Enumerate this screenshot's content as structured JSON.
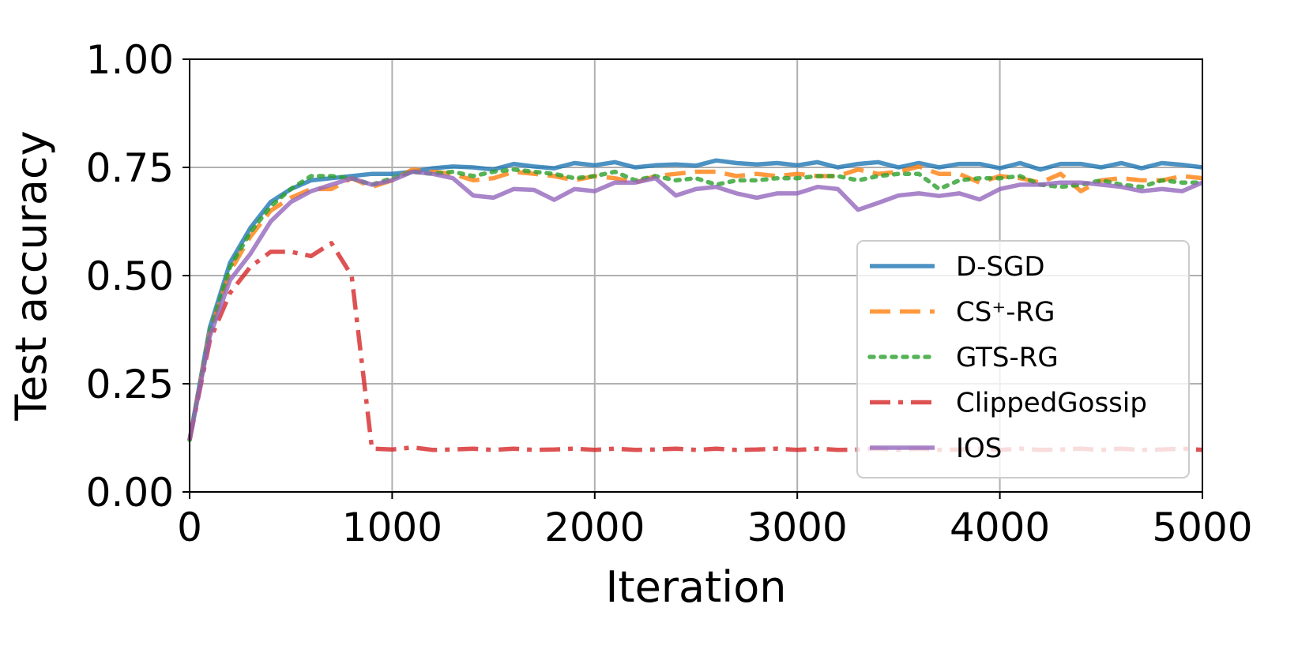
{
  "chart_data": {
    "type": "line",
    "title": "",
    "xlabel": "Iteration",
    "ylabel": "Test accuracy",
    "xlim": [
      0,
      5000
    ],
    "ylim": [
      0.0,
      1.0
    ],
    "xticks": [
      "0",
      "1000",
      "2000",
      "3000",
      "4000",
      "5000"
    ],
    "yticks": [
      "0.00",
      "0.25",
      "0.50",
      "0.75",
      "1.00"
    ],
    "grid": true,
    "legend_position": "center-right",
    "x": [
      0,
      100,
      200,
      300,
      400,
      500,
      600,
      700,
      800,
      900,
      1000,
      1100,
      1200,
      1300,
      1400,
      1500,
      1600,
      1700,
      1800,
      1900,
      2000,
      2100,
      2200,
      2300,
      2400,
      2500,
      2600,
      2700,
      2800,
      2900,
      3000,
      3100,
      3200,
      3300,
      3400,
      3500,
      3600,
      3700,
      3800,
      3900,
      4000,
      4100,
      4200,
      4300,
      4400,
      4500,
      4600,
      4700,
      4800,
      4900,
      5000
    ],
    "series": [
      {
        "name": "D-SGD",
        "color": "#1f77b4",
        "style": "solid",
        "values": [
          0.12,
          0.38,
          0.53,
          0.61,
          0.67,
          0.7,
          0.72,
          0.725,
          0.73,
          0.735,
          0.735,
          0.74,
          0.748,
          0.752,
          0.75,
          0.745,
          0.758,
          0.752,
          0.748,
          0.76,
          0.755,
          0.762,
          0.75,
          0.755,
          0.757,
          0.754,
          0.766,
          0.76,
          0.757,
          0.76,
          0.755,
          0.762,
          0.75,
          0.758,
          0.762,
          0.75,
          0.76,
          0.75,
          0.758,
          0.758,
          0.748,
          0.76,
          0.745,
          0.758,
          0.758,
          0.75,
          0.76,
          0.748,
          0.76,
          0.756,
          0.75
        ]
      },
      {
        "name": "CS⁺-RG",
        "color": "#ff7f0e",
        "style": "dashed",
        "values": [
          0.12,
          0.37,
          0.51,
          0.59,
          0.65,
          0.68,
          0.7,
          0.7,
          0.725,
          0.705,
          0.72,
          0.745,
          0.74,
          0.735,
          0.72,
          0.725,
          0.74,
          0.735,
          0.73,
          0.72,
          0.73,
          0.725,
          0.715,
          0.73,
          0.735,
          0.74,
          0.74,
          0.73,
          0.735,
          0.73,
          0.735,
          0.73,
          0.73,
          0.745,
          0.735,
          0.74,
          0.752,
          0.735,
          0.735,
          0.715,
          0.73,
          0.725,
          0.715,
          0.735,
          0.695,
          0.72,
          0.725,
          0.72,
          0.72,
          0.73,
          0.725
        ]
      },
      {
        "name": "GTS-RG",
        "color": "#2ca02c",
        "style": "dotted",
        "values": [
          0.12,
          0.37,
          0.52,
          0.6,
          0.66,
          0.7,
          0.73,
          0.73,
          0.725,
          0.71,
          0.725,
          0.74,
          0.735,
          0.74,
          0.73,
          0.74,
          0.745,
          0.74,
          0.735,
          0.725,
          0.73,
          0.74,
          0.72,
          0.73,
          0.72,
          0.725,
          0.71,
          0.72,
          0.72,
          0.725,
          0.725,
          0.73,
          0.73,
          0.72,
          0.73,
          0.735,
          0.735,
          0.7,
          0.72,
          0.725,
          0.725,
          0.73,
          0.71,
          0.705,
          0.71,
          0.72,
          0.71,
          0.705,
          0.72,
          0.715,
          0.715
        ]
      },
      {
        "name": "ClippedGossip",
        "color": "#d62728",
        "style": "dashdot",
        "values": [
          0.12,
          0.35,
          0.46,
          0.52,
          0.555,
          0.555,
          0.545,
          0.575,
          0.5,
          0.1,
          0.098,
          0.103,
          0.097,
          0.098,
          0.1,
          0.097,
          0.1,
          0.097,
          0.098,
          0.1,
          0.097,
          0.1,
          0.097,
          0.098,
          0.1,
          0.097,
          0.1,
          0.097,
          0.098,
          0.1,
          0.097,
          0.1,
          0.097,
          0.098,
          0.1,
          0.097,
          0.1,
          0.097,
          0.098,
          0.1,
          0.097,
          0.1,
          0.097,
          0.098,
          0.1,
          0.097,
          0.1,
          0.097,
          0.098,
          0.1,
          0.097
        ]
      },
      {
        "name": "IOS",
        "color": "#9467bd",
        "style": "solid",
        "values": [
          0.12,
          0.36,
          0.49,
          0.55,
          0.625,
          0.67,
          0.695,
          0.71,
          0.725,
          0.71,
          0.72,
          0.74,
          0.735,
          0.725,
          0.685,
          0.68,
          0.7,
          0.698,
          0.675,
          0.7,
          0.695,
          0.715,
          0.715,
          0.725,
          0.685,
          0.7,
          0.705,
          0.69,
          0.68,
          0.69,
          0.69,
          0.705,
          0.7,
          0.652,
          0.668,
          0.685,
          0.69,
          0.684,
          0.69,
          0.676,
          0.7,
          0.71,
          0.71,
          0.715,
          0.715,
          0.71,
          0.705,
          0.695,
          0.7,
          0.695,
          0.715
        ]
      }
    ]
  }
}
